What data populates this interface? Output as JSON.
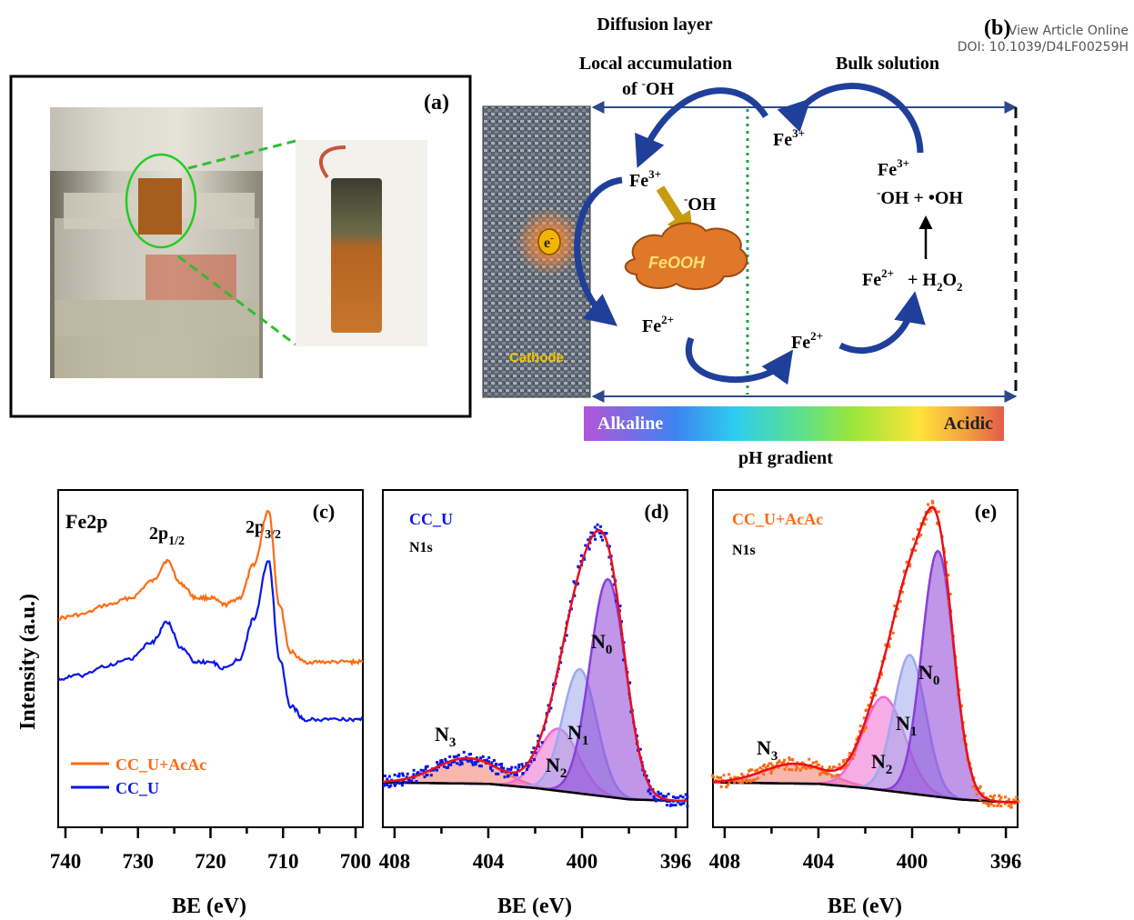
{
  "watermark": {
    "line1": "View Article Online",
    "line2": "DOI: 10.1039/D4LF00259H"
  },
  "panel_a": {
    "label": "(a)"
  },
  "panel_b": {
    "label": "(b)",
    "diffusion_layer": "Diffusion layer",
    "local_accumulation_1": "Local accumulation",
    "local_accumulation_2": "of ",
    "oh_minus": "OH",
    "bulk_solution": "Bulk solution",
    "cathode": "Cathode",
    "electron": "e",
    "feooh": "FeOOH",
    "fe3": "Fe",
    "fe2": "Fe",
    "sup3": "3+",
    "sup2": "2+",
    "minus": "-",
    "oh_plus_radical": "OH + •OH",
    "h2o2_plus": "+ H",
    "h2o2_2": "2",
    "h2o2_o": "O",
    "alkaline": "Alkaline",
    "acidic": "Acidic",
    "ph_gradient": "pH gradient",
    "colors": {
      "diffusion_layer": "#e8001c",
      "local_accumulation": "#1aa44a",
      "bulk_solution": "#1f6fbf",
      "arrow_blue": "#1f3f9a",
      "feooh_fill": "#e0782a",
      "electron": "#f0b000"
    }
  },
  "chart_data": [
    {
      "panel": "(c)",
      "type": "line",
      "title": "Fe2p",
      "xlabel": "BE (eV)",
      "ylabel": "Intensity (a.u.)",
      "xlim": [
        741,
        699
      ],
      "x_ticks": [
        740,
        730,
        720,
        710,
        700
      ],
      "annotations": [
        "2p1/2",
        "2p3/2"
      ],
      "legend": "bottom-left",
      "series": [
        {
          "name": "CC_U+AcAc",
          "color": "#ff6a13",
          "x": [
            741,
            738,
            734,
            731,
            728,
            726,
            724,
            722,
            720,
            718,
            716,
            714,
            712,
            710.5,
            709,
            707,
            704,
            701,
            699
          ],
          "y": [
            0.62,
            0.63,
            0.66,
            0.68,
            0.73,
            0.79,
            0.72,
            0.68,
            0.68,
            0.66,
            0.68,
            0.78,
            0.94,
            0.66,
            0.52,
            0.49,
            0.49,
            0.49,
            0.49
          ]
        },
        {
          "name": "CC_U",
          "color": "#0a17e6",
          "x": [
            741,
            738,
            734,
            731,
            728,
            726,
            724,
            722,
            720,
            718,
            716,
            714,
            712,
            710.5,
            709,
            707,
            704,
            701,
            699
          ],
          "y": [
            0.44,
            0.45,
            0.48,
            0.5,
            0.55,
            0.61,
            0.53,
            0.49,
            0.49,
            0.47,
            0.5,
            0.62,
            0.79,
            0.5,
            0.36,
            0.32,
            0.32,
            0.32,
            0.32
          ]
        }
      ]
    },
    {
      "panel": "(d)",
      "type": "area",
      "title": "CC_U",
      "subtitle": "N1s",
      "xlabel": "BE (eV)",
      "xlim": [
        408.5,
        395.5
      ],
      "x_ticks": [
        408,
        404,
        400,
        396
      ],
      "component_labels": {
        "N0": "N",
        "N0_sub": "0",
        "N1": "N",
        "N1_sub": "1",
        "N2": "N",
        "N2_sub": "2",
        "N3": "N",
        "N3_sub": "3"
      },
      "background": {
        "x": [
          408.5,
          404,
          402,
          400,
          398,
          396,
          395.5
        ],
        "y": [
          0.03,
          0.025,
          0.01,
          -0.01,
          -0.03,
          -0.035,
          -0.035
        ]
      },
      "components": [
        {
          "name": "N0",
          "center": 398.9,
          "fwhm": 1.8,
          "height": 0.77,
          "color": "#8a3fd6"
        },
        {
          "name": "N1",
          "center": 400.1,
          "fwhm": 1.7,
          "height": 0.44,
          "color": "#9ea8ef"
        },
        {
          "name": "N2",
          "center": 401.0,
          "fwhm": 2.0,
          "height": 0.22,
          "color": "#ef6ad0"
        },
        {
          "name": "N3",
          "center": 404.9,
          "fwhm": 3.2,
          "height": 0.09,
          "color": "#f07a6c"
        }
      ],
      "data_color": "#0a17e6"
    },
    {
      "panel": "(e)",
      "type": "area",
      "title": "CC_U+AcAc",
      "subtitle": "N1s",
      "xlabel": "BE (eV)",
      "xlim": [
        408.5,
        395.5
      ],
      "x_ticks": [
        408,
        404,
        400,
        396
      ],
      "component_labels": {
        "N0": "N",
        "N0_sub": "0",
        "N1": "N",
        "N1_sub": "1",
        "N2": "N",
        "N2_sub": "2",
        "N3": "N",
        "N3_sub": "3"
      },
      "background": {
        "x": [
          408.5,
          404,
          402,
          400,
          398,
          396,
          395.5
        ],
        "y": [
          0.03,
          0.025,
          0.01,
          -0.01,
          -0.03,
          -0.04,
          -0.04
        ]
      },
      "components": [
        {
          "name": "N0",
          "center": 398.9,
          "fwhm": 1.6,
          "height": 0.87,
          "color": "#8a3fd6"
        },
        {
          "name": "N1",
          "center": 400.1,
          "fwhm": 1.6,
          "height": 0.49,
          "color": "#9ea8ef"
        },
        {
          "name": "N2",
          "center": 401.2,
          "fwhm": 2.1,
          "height": 0.33,
          "color": "#ef6ad0"
        },
        {
          "name": "N3",
          "center": 405.0,
          "fwhm": 3.2,
          "height": 0.07,
          "color": "#f07a6c"
        }
      ],
      "data_color": "#ff6a13"
    }
  ]
}
